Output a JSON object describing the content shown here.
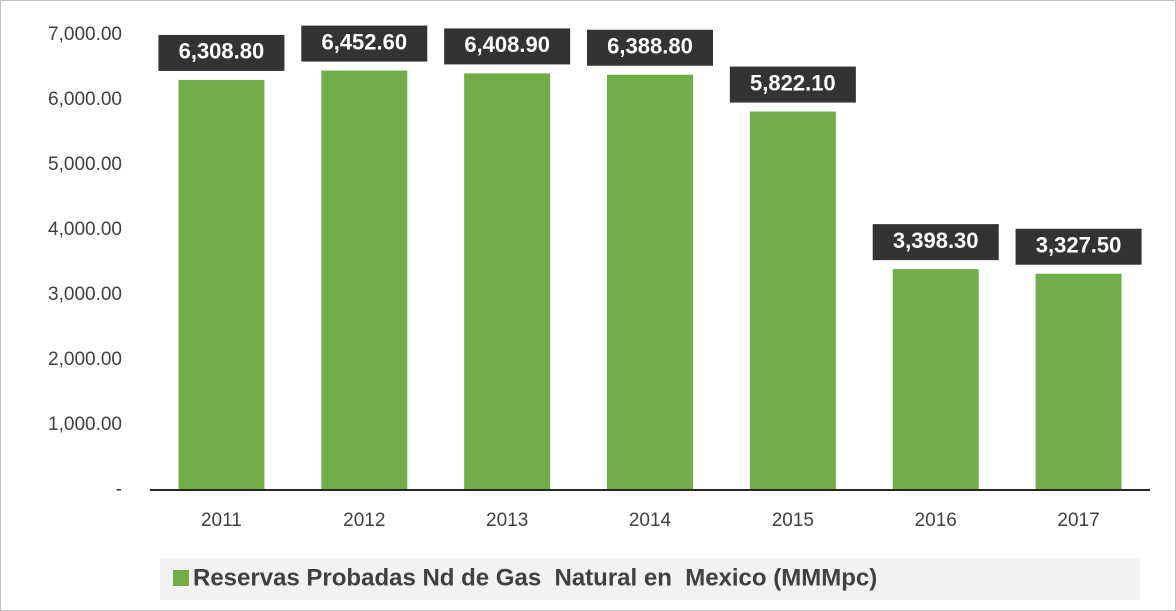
{
  "chart_data": {
    "type": "bar",
    "categories": [
      "2011",
      "2012",
      "2013",
      "2014",
      "2015",
      "2016",
      "2017"
    ],
    "series": [
      {
        "name": "Reservas Probadas Nd de Gas  Natural en  Mexico (MMMpc)",
        "color": "#70ad47",
        "values": [
          6308.8,
          6452.6,
          6408.9,
          6388.8,
          5822.1,
          3398.3,
          3327.5
        ],
        "value_labels": [
          "6,308.80",
          "6,452.60",
          "6,408.90",
          "6,388.80",
          "5,822.10",
          "3,398.30",
          "3,327.50"
        ]
      }
    ],
    "ylim": [
      0,
      7000
    ],
    "yticks": [
      {
        "value": 0,
        "label": "-"
      },
      {
        "value": 1000,
        "label": "1,000.00"
      },
      {
        "value": 2000,
        "label": "2,000.00"
      },
      {
        "value": 3000,
        "label": "3,000.00"
      },
      {
        "value": 4000,
        "label": "4,000.00"
      },
      {
        "value": 5000,
        "label": "5,000.00"
      },
      {
        "value": 6000,
        "label": "6,000.00"
      },
      {
        "value": 7000,
        "label": "7,000.00"
      }
    ],
    "grid": false,
    "legend": "bottom"
  }
}
